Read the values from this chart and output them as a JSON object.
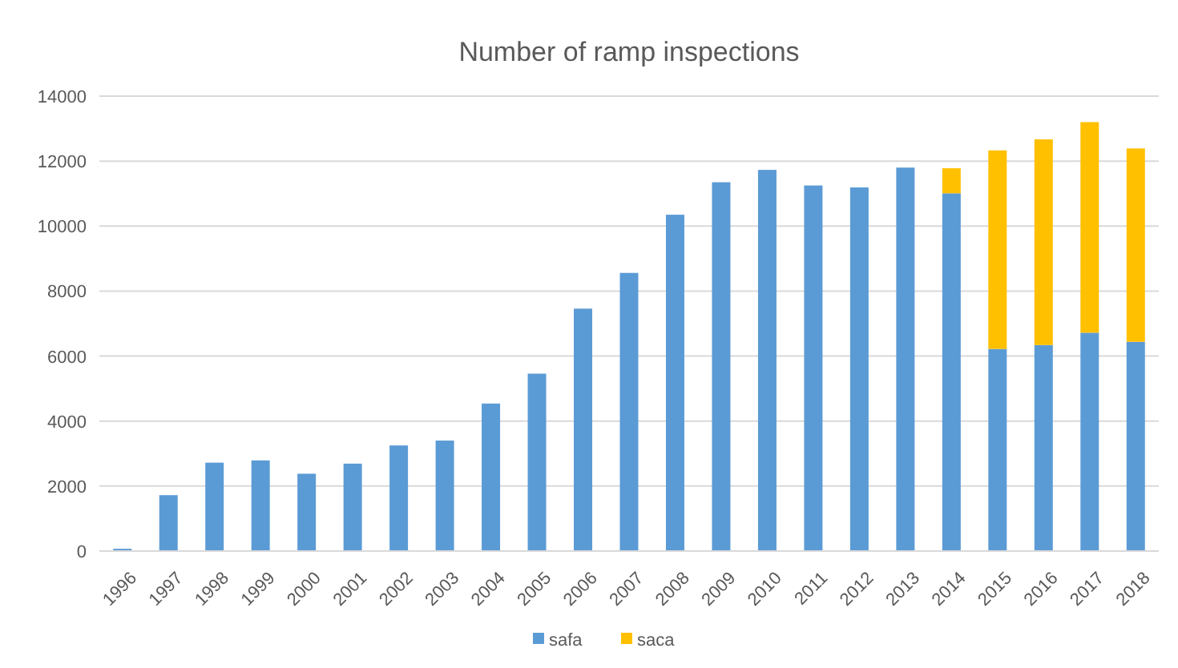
{
  "chart_data": {
    "type": "bar",
    "title": "Number of ramp inspections",
    "categories": [
      "1996",
      "1997",
      "1998",
      "1999",
      "2000",
      "2001",
      "2002",
      "2003",
      "2004",
      "2005",
      "2006",
      "2007",
      "2008",
      "2009",
      "2010",
      "2011",
      "2012",
      "2013",
      "2014",
      "2015",
      "2016",
      "2017",
      "2018"
    ],
    "series": [
      {
        "name": "safa",
        "color": "#5b9bd5",
        "values": [
          70,
          1720,
          2720,
          2790,
          2380,
          2690,
          3250,
          3400,
          4540,
          5460,
          7460,
          8560,
          10350,
          11350,
          11730,
          11250,
          11190,
          11800,
          11010,
          6220,
          6340,
          6720,
          6440
        ]
      },
      {
        "name": "saca",
        "color": "#ffc000",
        "values": [
          null,
          null,
          null,
          null,
          null,
          null,
          null,
          null,
          null,
          null,
          null,
          null,
          null,
          null,
          null,
          null,
          null,
          null,
          770,
          6110,
          6330,
          6480,
          5950
        ]
      }
    ],
    "stacked": true,
    "ylim": [
      0,
      14000
    ],
    "yticks": [
      0,
      2000,
      4000,
      6000,
      8000,
      10000,
      12000,
      14000
    ],
    "grid": "y",
    "legend": "bottom"
  }
}
